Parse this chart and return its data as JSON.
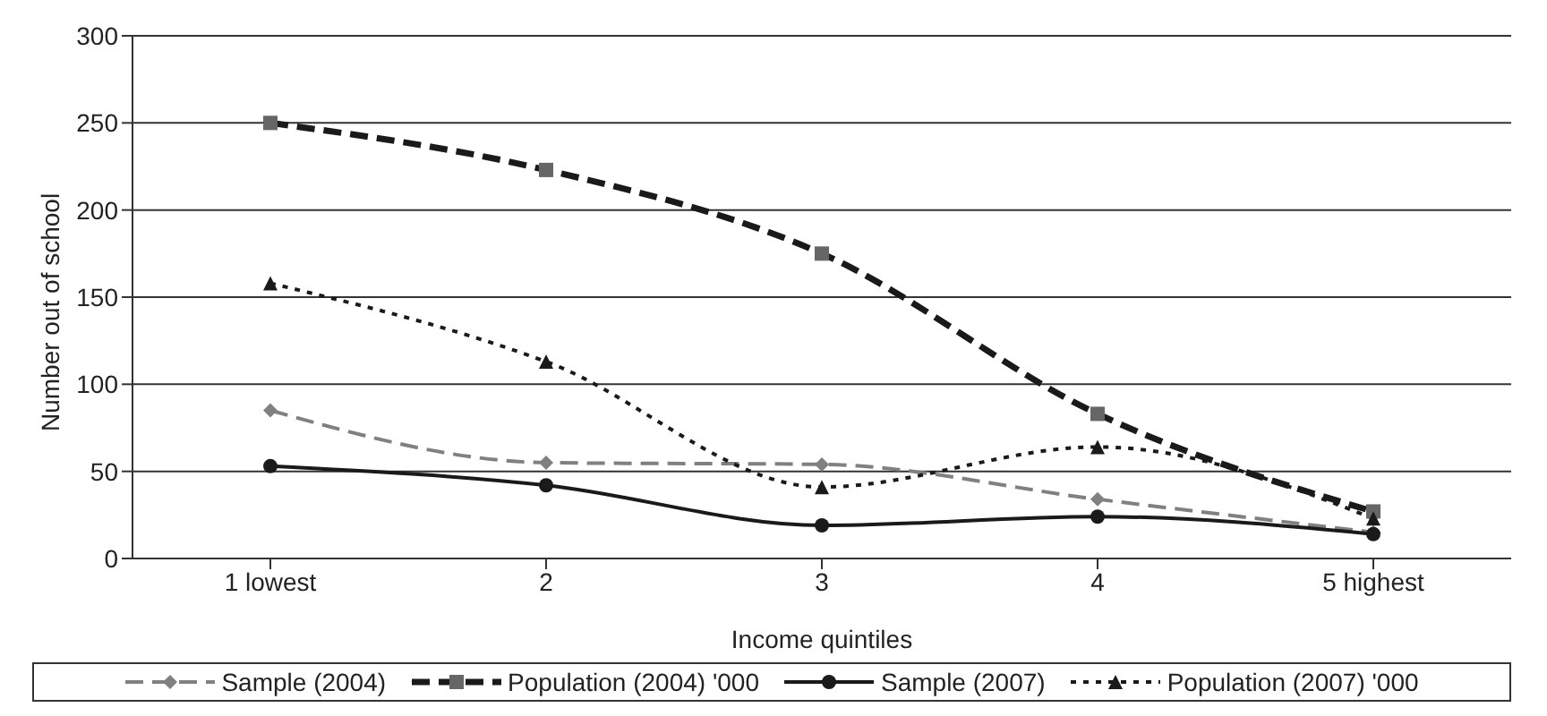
{
  "chart_data": {
    "type": "line",
    "xlabel": "Income quintiles",
    "ylabel": "Number out of school",
    "categories": [
      "1 lowest",
      "2",
      "3",
      "4",
      "5 highest"
    ],
    "series": [
      {
        "name": "Sample (2004)",
        "color": "#808080",
        "values": [
          85,
          55,
          54,
          34,
          15
        ],
        "marker": "diamond",
        "line_style": "dashed"
      },
      {
        "name": "Population (2004) '000",
        "color": "#1a1a1a",
        "values": [
          250,
          223,
          175,
          83,
          27
        ],
        "marker": "square",
        "line_style": "dashed"
      },
      {
        "name": "Sample (2007)",
        "color": "#1a1a1a",
        "values": [
          53,
          42,
          19,
          24,
          14
        ],
        "marker": "circle",
        "line_style": "solid"
      },
      {
        "name": "Population (2007) '000",
        "color": "#1a1a1a",
        "values": [
          158,
          113,
          41,
          64,
          23
        ],
        "marker": "triangle",
        "line_style": "dotted"
      }
    ],
    "ylim": [
      0,
      300
    ],
    "yticks": [
      0,
      50,
      100,
      150,
      200,
      250,
      300
    ],
    "grid": "y",
    "legend": "bottom"
  }
}
